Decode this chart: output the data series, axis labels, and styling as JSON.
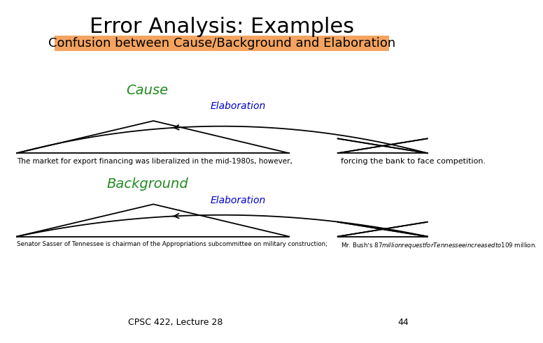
{
  "title": "Error Analysis: Examples",
  "subtitle": "Confusion between Cause/Background and Elaboration",
  "subtitle_bg": "#F4A460",
  "cause_label": "Cause",
  "cause_color": "#228B22",
  "background_label": "Background",
  "background_color": "#228B22",
  "elaboration_color": "#0000CD",
  "elaboration_label": "Elaboration",
  "sentence1_left": "The market for export financing was liberalized in the mid-1980s, however,",
  "sentence1_right": "forcing the bank to face competition.",
  "sentence2_left": "Senator Sasser of Tennessee is chairman of the Appropriations subcommittee on military construction;",
  "sentence2_right": "Mr. Bush’s $87 million request for Tennessee increased to $109 million.",
  "footer": "CPSC 422, Lecture 28",
  "page_num": "44",
  "bg_color": "#ffffff"
}
